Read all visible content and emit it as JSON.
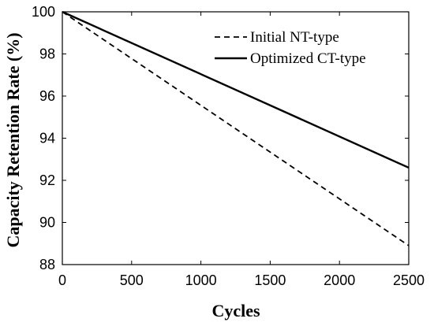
{
  "chart_data": {
    "type": "line",
    "title": "",
    "xlabel": "Cycles",
    "ylabel": "Capacity Retention Rate (%)",
    "xlim": [
      0,
      2500
    ],
    "ylim": [
      88,
      100
    ],
    "x_ticks": [
      0,
      500,
      1000,
      1500,
      2000,
      2500
    ],
    "y_ticks": [
      88,
      90,
      92,
      94,
      96,
      98,
      100
    ],
    "grid": false,
    "legend_position": "top-right",
    "series": [
      {
        "name": "Initial NT-type",
        "style": "dashed",
        "color": "#000000",
        "x": [
          0,
          2500
        ],
        "y": [
          100,
          88.9
        ]
      },
      {
        "name": "Optimized CT-type",
        "style": "solid",
        "color": "#000000",
        "x": [
          0,
          2500
        ],
        "y": [
          100,
          92.6
        ]
      }
    ]
  }
}
